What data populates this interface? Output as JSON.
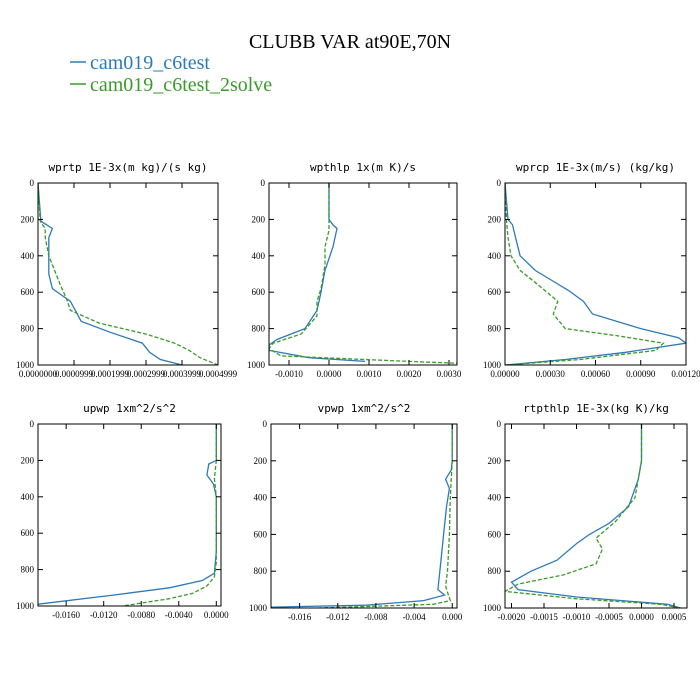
{
  "figure": {
    "title": "CLUBB VAR at90E,70N",
    "legend": [
      {
        "label": "cam019_c6test",
        "color": "#2e7ab8",
        "dash": "solid"
      },
      {
        "label": "cam019_c6test_2solve",
        "color": "#3a9a2a",
        "dash": "dashed"
      }
    ]
  },
  "chart_data": [
    {
      "type": "line",
      "title": "wprtp  1E-3x(m kg)/(s kg)",
      "xlim": [
        0.0,
        0.0004999999
      ],
      "ylim": [
        1000,
        0
      ],
      "xticks": [
        0,
        9.99999e-05,
        0.0001999999,
        0.0002999999,
        0.0003999999,
        0.0004999999
      ],
      "xtick_labels": [
        "0.0000000",
        "0.0000999",
        "0.0001999",
        "0.0002999",
        "0.0003999",
        "0.0004999"
      ],
      "yticks": [
        0,
        200,
        400,
        600,
        800,
        1000
      ],
      "series": [
        {
          "name": "cam019_c6test",
          "color": "#2e7ab8",
          "dash": "solid",
          "x": [
            0,
            8e-06,
            4e-05,
            3e-05,
            3e-05,
            3e-05,
            4e-05,
            9e-05,
            0.00012,
            0.0002,
            0.00029,
            0.00031,
            0.00034,
            0.0004
          ],
          "y": [
            0,
            210,
            250,
            300,
            400,
            500,
            580,
            650,
            760,
            820,
            880,
            930,
            970,
            1000
          ]
        },
        {
          "name": "cam019_c6test_2solve",
          "color": "#3a9a2a",
          "dash": "dashed",
          "x": [
            0,
            6e-06,
            2e-05,
            2e-05,
            3e-05,
            6e-05,
            8e-05,
            9e-05,
            0.00017,
            0.0003,
            0.00038,
            0.00042,
            0.00045,
            0.0005
          ],
          "y": [
            0,
            210,
            250,
            300,
            400,
            550,
            640,
            700,
            770,
            830,
            880,
            920,
            960,
            1000
          ]
        }
      ]
    },
    {
      "type": "line",
      "title": "wpthlp  1x(m K)/s",
      "xlim": [
        -0.0015,
        0.0032
      ],
      "ylim": [
        1000,
        0
      ],
      "xticks": [
        -0.001,
        0.0,
        0.001,
        0.002,
        0.003
      ],
      "xtick_labels": [
        "-0.0010",
        "0.0000",
        "0.0010",
        "0.0020",
        "0.0030"
      ],
      "yticks": [
        0,
        200,
        400,
        600,
        800,
        1000
      ],
      "series": [
        {
          "name": "cam019_c6test",
          "color": "#2e7ab8",
          "dash": "solid",
          "x": [
            0.0,
            0.0,
            0.0001,
            0.0002,
            0.0001,
            -0.0001,
            -0.0002,
            -0.0003,
            -0.0006,
            -0.0013,
            -0.0015,
            -0.0015,
            -0.0005,
            0.0009
          ],
          "y": [
            0,
            200,
            230,
            250,
            350,
            480,
            600,
            700,
            800,
            860,
            890,
            920,
            960,
            980
          ]
        },
        {
          "name": "cam019_c6test_2solve",
          "color": "#3a9a2a",
          "dash": "dashed",
          "x": [
            0.0,
            0.0,
            0.0,
            -0.0001,
            -0.0001,
            -0.0002,
            -0.0003,
            -0.0003,
            -0.0007,
            -0.0014,
            -0.0015,
            -0.0012,
            0.002,
            0.0032
          ],
          "y": [
            0,
            200,
            260,
            350,
            450,
            580,
            650,
            730,
            830,
            880,
            910,
            950,
            980,
            990
          ]
        }
      ]
    },
    {
      "type": "line",
      "title": "wprcp  1E-3x(m/s) (kg/kg)",
      "xlim": [
        0.0,
        0.0012
      ],
      "ylim": [
        1000,
        0
      ],
      "xticks": [
        0.0,
        0.0003,
        0.0006,
        0.0009,
        0.0012
      ],
      "xtick_labels": [
        "0.00000",
        "0.00030",
        "0.00060",
        "0.00090",
        "0.00120"
      ],
      "yticks": [
        0,
        200,
        400,
        600,
        800,
        1000
      ],
      "series": [
        {
          "name": "cam019_c6test",
          "color": "#2e7ab8",
          "dash": "solid",
          "x": [
            0.0,
            2e-05,
            5e-05,
            7e-05,
            0.0001,
            0.0002,
            0.0003,
            0.00042,
            0.00052,
            0.00058,
            0.0009,
            0.00115,
            0.0012,
            0.0008,
            0.0004,
            0.0
          ],
          "y": [
            0,
            200,
            230,
            300,
            400,
            480,
            530,
            590,
            650,
            720,
            800,
            850,
            880,
            930,
            970,
            1000
          ]
        },
        {
          "name": "cam019_c6test_2solve",
          "color": "#3a9a2a",
          "dash": "dashed",
          "x": [
            0.0,
            1e-05,
            2e-05,
            4e-05,
            0.0001,
            0.00022,
            0.00035,
            0.00032,
            0.0004,
            0.00075,
            0.00105,
            0.001,
            0.0005,
            0.0
          ],
          "y": [
            0,
            200,
            300,
            400,
            480,
            560,
            650,
            720,
            800,
            840,
            880,
            920,
            970,
            1000
          ]
        }
      ]
    },
    {
      "type": "line",
      "title": "upwp  1xm^2/s^2",
      "xlim": [
        -0.019,
        0.0005
      ],
      "ylim": [
        1000,
        0
      ],
      "xticks": [
        -0.016,
        -0.012,
        -0.008,
        -0.004,
        0.0
      ],
      "xtick_labels": [
        "-0.0160",
        "-0.0120",
        "-0.0080",
        "-0.0040",
        "0.0000"
      ],
      "yticks": [
        0,
        200,
        400,
        600,
        800,
        1000
      ],
      "series": [
        {
          "name": "cam019_c6test",
          "color": "#2e7ab8",
          "dash": "solid",
          "x": [
            0.0,
            0.0,
            -0.0008,
            -0.001,
            -0.0003,
            0.0,
            0.0,
            -0.0002,
            -0.0015,
            -0.005,
            -0.011,
            -0.019
          ],
          "y": [
            0,
            200,
            220,
            280,
            330,
            400,
            700,
            820,
            860,
            900,
            940,
            990
          ]
        },
        {
          "name": "cam019_c6test_2solve",
          "color": "#3a9a2a",
          "dash": "dashed",
          "x": [
            0.0,
            0.0,
            -0.0002,
            0.0,
            0.0,
            -0.0002,
            -0.001,
            -0.0025,
            -0.005,
            -0.01
          ],
          "y": [
            0,
            200,
            300,
            400,
            760,
            840,
            890,
            930,
            960,
            1000
          ]
        }
      ]
    },
    {
      "type": "line",
      "title": "vpwp  1xm^2/s^2",
      "xlim": [
        -0.019,
        0.0005
      ],
      "ylim": [
        1000,
        0
      ],
      "xticks": [
        -0.016,
        -0.012,
        -0.008,
        -0.004,
        0.0
      ],
      "xtick_labels": [
        "-0.016",
        "-0.012",
        "-0.008",
        "-0.004",
        "0.000"
      ],
      "yticks": [
        0,
        200,
        400,
        600,
        800,
        1000
      ],
      "series": [
        {
          "name": "cam019_c6test",
          "color": "#2e7ab8",
          "dash": "solid",
          "x": [
            0.0,
            0.0,
            -0.0001,
            -0.0007,
            -0.0003,
            -0.0006,
            -0.0009,
            -0.0012,
            -0.0015,
            -0.0008,
            -0.003,
            -0.009,
            -0.019
          ],
          "y": [
            0,
            200,
            250,
            300,
            350,
            450,
            600,
            750,
            900,
            930,
            960,
            985,
            995
          ]
        },
        {
          "name": "cam019_c6test_2solve",
          "color": "#3a9a2a",
          "dash": "dashed",
          "x": [
            0.0,
            0.0,
            -0.0002,
            -0.0003,
            -0.0005,
            -0.0007,
            -0.0004,
            -0.0002,
            -0.002,
            -0.008,
            -0.014
          ],
          "y": [
            0,
            200,
            400,
            600,
            800,
            880,
            930,
            960,
            980,
            990,
            1000
          ]
        }
      ]
    },
    {
      "type": "line",
      "title": "rtpthlp  1E-3x(kg K)/kg",
      "xlim": [
        -0.0021,
        0.0007
      ],
      "ylim": [
        1000,
        0
      ],
      "xticks": [
        -0.002,
        -0.0015,
        -0.001,
        -0.0005,
        0.0,
        0.0005
      ],
      "xtick_labels": [
        "-0.0020",
        "-0.0015",
        "-0.0010",
        "-0.0005",
        "0.0000",
        "0.0005"
      ],
      "yticks": [
        0,
        200,
        400,
        600,
        800,
        1000
      ],
      "series": [
        {
          "name": "cam019_c6test",
          "color": "#2e7ab8",
          "dash": "solid",
          "x": [
            0.0,
            0.0,
            -5e-05,
            -0.0002,
            -0.0005,
            -0.0008,
            -0.001,
            -0.0013,
            -0.0017,
            -0.002,
            -0.0019,
            -0.001,
            0.0004,
            0.0006
          ],
          "y": [
            0,
            200,
            300,
            450,
            540,
            600,
            650,
            740,
            800,
            860,
            900,
            940,
            980,
            1000
          ]
        },
        {
          "name": "cam019_c6test_2solve",
          "color": "#3a9a2a",
          "dash": "dashed",
          "x": [
            0.0,
            0.0,
            -0.0001,
            -0.0004,
            -0.0007,
            -0.0006,
            -0.0007,
            -0.0012,
            -0.0019,
            -0.0021,
            -0.001,
            0.0003,
            0.0006
          ],
          "y": [
            0,
            200,
            400,
            530,
            620,
            680,
            760,
            820,
            870,
            910,
            950,
            980,
            1000
          ]
        }
      ]
    }
  ]
}
